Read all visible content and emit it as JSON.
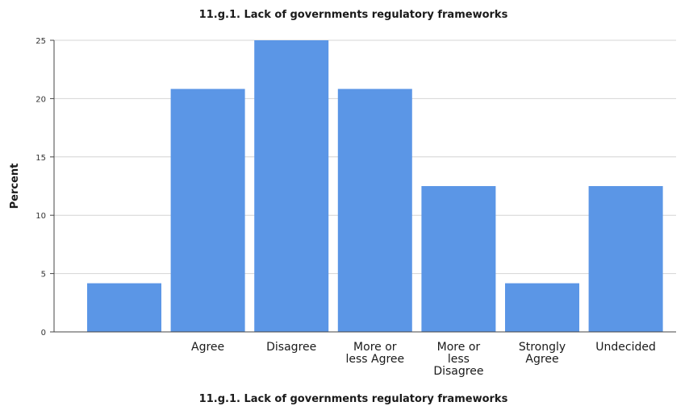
{
  "chart_data": {
    "type": "bar",
    "title": "11.g.1. Lack of governments regulatory frameworks",
    "xlabel": "11.g.1. Lack of governments regulatory frameworks",
    "ylabel": "Percent",
    "categories": [
      "",
      "Agree",
      "Disagree",
      "More or less Agree",
      "More or less Disagree",
      "Strongly Agree",
      "Undecided"
    ],
    "category_lines": [
      [],
      [
        "Agree"
      ],
      [
        "Disagree"
      ],
      [
        "More or",
        "less Agree"
      ],
      [
        "More or",
        "less",
        "Disagree"
      ],
      [
        "Strongly",
        "Agree"
      ],
      [
        "Undecided"
      ]
    ],
    "values": [
      4.17,
      20.83,
      25.0,
      20.83,
      12.5,
      4.17,
      12.5
    ],
    "ylim": [
      0,
      25
    ],
    "yticks": [
      0,
      5,
      10,
      15,
      20,
      25
    ],
    "grid": true,
    "bar_color": "#5b96e6"
  }
}
